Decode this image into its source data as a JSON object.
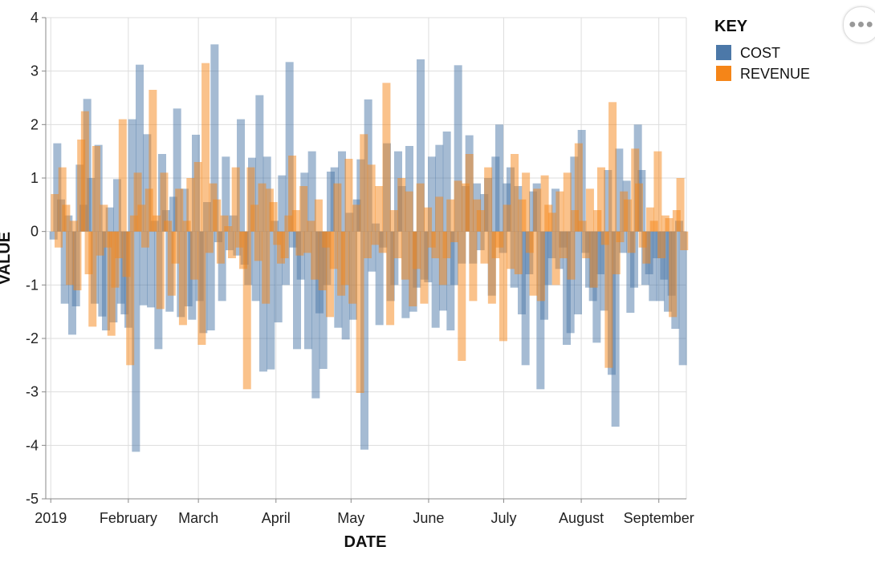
{
  "chart_data": {
    "type": "bar",
    "title": "",
    "xlabel": "DATE",
    "ylabel": "VALUE",
    "ylim": [
      -5,
      4
    ],
    "y_ticks": [
      "4",
      "3",
      "2",
      "1",
      "0",
      "-1",
      "-2",
      "-3",
      "-4",
      "-5"
    ],
    "x_ticks": [
      "2019",
      "February",
      "March",
      "April",
      "May",
      "June",
      "July",
      "August",
      "September"
    ],
    "x_range_days": [
      -2,
      254
    ],
    "legend": {
      "title": "KEY",
      "position": "top-right"
    },
    "series": [
      {
        "name": "COST",
        "color": "#4c78a8",
        "opacity": 0.5,
        "values": [
          -0.15,
          1.65,
          0.6,
          -1.35,
          0.3,
          -1.93,
          -1.4,
          1.25,
          0.5,
          2.48,
          1.0,
          -1.35,
          1.62,
          -1.59,
          -1.85,
          0.45,
          -1.7,
          0.98,
          -1.35,
          -1.55,
          -1.8,
          2.1,
          -4.12,
          3.12,
          -1.38,
          1.82,
          -1.42,
          0.2,
          -2.2,
          1.45,
          0.4,
          -1.5,
          0.65,
          2.3,
          -1.6,
          0.8,
          -1.4,
          -1.65,
          1.81,
          -1.3,
          -1.9,
          0.55,
          -1.85,
          3.5,
          -0.2,
          -1.3,
          1.4,
          -0.35,
          0.3,
          -0.45,
          2.1,
          -0.62,
          -1.0,
          1.38,
          -1.3,
          2.55,
          -2.62,
          1.4,
          -2.58,
          0.2,
          -1.7,
          1.05,
          -1.0,
          3.17,
          -0.3,
          -2.2,
          -0.9,
          1.1,
          -2.2,
          1.5,
          -3.12,
          -1.53,
          -2.57,
          -1.0,
          1.12,
          1.2,
          -1.8,
          1.5,
          -2.02,
          0.35,
          -1.65,
          0.6,
          1.35,
          -4.08,
          2.47,
          -0.75,
          0.15,
          -1.75,
          -0.3,
          1.65,
          -1.3,
          -1.0,
          1.5,
          0.85,
          -1.62,
          1.6,
          -1.5,
          -1.05,
          3.22,
          -0.9,
          -0.95,
          1.4,
          -1.8,
          1.62,
          -1.48,
          1.87,
          -1.85,
          -1.0,
          3.11,
          -0.6,
          0.85,
          1.8,
          -0.6,
          0.9,
          -0.35,
          0.7,
          1.0,
          -1.2,
          1.4,
          2.0,
          -0.4,
          0.9,
          1.2,
          -1.05,
          0.85,
          -1.55,
          -2.5,
          -0.8,
          0.75,
          0.9,
          -2.95,
          -1.65,
          -1.0,
          -0.5,
          0.8,
          -0.7,
          -0.3,
          -2.12,
          -1.9,
          1.4,
          -1.55,
          1.9,
          -0.4,
          -1.05,
          -1.3,
          -2.08,
          -0.8,
          -1.48,
          1.15,
          -2.68,
          -3.65,
          1.55,
          -0.4,
          0.95,
          -1.52,
          -1.05,
          2.0,
          1.15,
          -1.0,
          -0.8,
          -1.3,
          -0.5,
          -1.3,
          -0.9,
          -1.5,
          -1.2,
          -1.82,
          0.2,
          -2.5
        ]
      },
      {
        "name": "REVENUE",
        "color": "#f58518",
        "opacity": 0.5,
        "values": [
          0.7,
          -0.3,
          1.2,
          0.5,
          -1.0,
          0.2,
          -1.1,
          1.72,
          2.25,
          -0.8,
          -1.78,
          1.6,
          -0.45,
          0.5,
          -0.3,
          -1.95,
          -1.05,
          -0.5,
          2.1,
          -0.85,
          -2.5,
          0.3,
          1.1,
          0.5,
          -0.3,
          0.8,
          2.65,
          0.3,
          -1.45,
          1.1,
          0.2,
          -1.2,
          -0.6,
          0.8,
          -1.75,
          0.2,
          1.0,
          -0.9,
          1.3,
          -2.12,
          3.15,
          -0.4,
          0.9,
          0.6,
          -0.6,
          0.3,
          0.1,
          -0.5,
          1.2,
          -0.3,
          -0.7,
          -2.95,
          1.2,
          0.5,
          -0.55,
          0.9,
          -1.35,
          0.8,
          0.55,
          -0.25,
          -0.6,
          -0.5,
          0.3,
          1.42,
          0.4,
          -0.45,
          0.85,
          -0.4,
          0.2,
          -0.9,
          0.6,
          -1.1,
          -0.3,
          -1.6,
          -0.7,
          0.9,
          -1.2,
          -1.0,
          1.36,
          -1.35,
          0.5,
          -3.02,
          1.82,
          -0.5,
          1.25,
          -0.25,
          0.85,
          -0.4,
          2.78,
          -1.75,
          0.4,
          -0.5,
          1.0,
          -0.9,
          0.75,
          -1.4,
          -0.7,
          0.9,
          -1.35,
          0.45,
          -0.3,
          -0.5,
          0.65,
          -1.0,
          -0.5,
          0.6,
          -0.2,
          0.95,
          -2.42,
          0.9,
          1.45,
          -1.3,
          0.6,
          0.4,
          -0.6,
          1.2,
          -1.35,
          -0.5,
          -0.3,
          -2.05,
          0.5,
          -0.7,
          1.45,
          -0.8,
          0.6,
          1.1,
          -0.4,
          -1.2,
          0.8,
          -1.3,
          1.05,
          0.5,
          0.35,
          -1.0,
          0.75,
          -0.5,
          1.1,
          -0.9,
          0.4,
          1.65,
          0.2,
          -0.5,
          0.8,
          -1.05,
          0.4,
          1.2,
          -0.25,
          -2.55,
          2.42,
          -0.8,
          -0.2,
          0.75,
          0.6,
          -0.4,
          1.55,
          0.9,
          -0.3,
          -0.6,
          0.45,
          0.2,
          1.5,
          -0.5,
          0.3,
          0.25,
          -1.6,
          0.4,
          1.0,
          -0.35
        ]
      }
    ]
  }
}
